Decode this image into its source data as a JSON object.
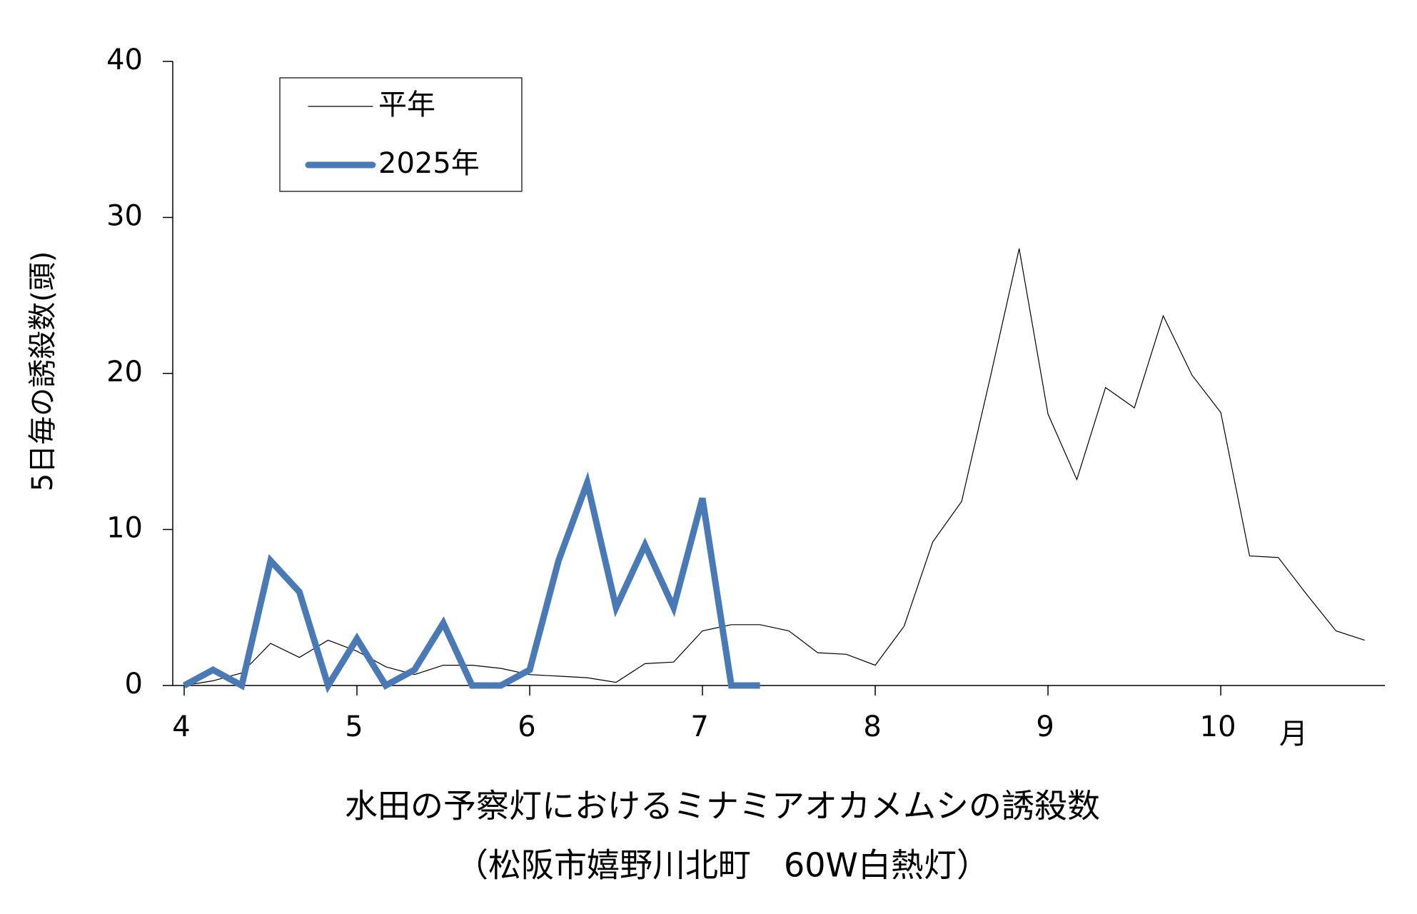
{
  "chart_data": {
    "type": "line",
    "title": "水田の予察灯におけるミナミアオカメムシの誘殺数",
    "subtitle": "（松阪市嬉野川北町　60W白熱灯）",
    "y_label": "5日毎の誘殺数(頭)",
    "x_label": "月",
    "x": [
      4,
      4.167,
      4.333,
      4.5,
      4.667,
      4.833,
      5,
      5.167,
      5.333,
      5.5,
      5.667,
      5.833,
      6,
      6.167,
      6.333,
      6.5,
      6.667,
      6.833,
      7,
      7.167,
      7.333,
      7.5,
      7.667,
      7.833,
      8,
      8.167,
      8.333,
      8.5,
      8.667,
      8.833,
      9,
      9.167,
      9.333,
      9.5,
      9.667,
      9.833,
      10,
      10.167,
      10.333,
      10.5,
      10.667,
      10.833
    ],
    "series": [
      {
        "name": "平年",
        "color": "#000000",
        "width": 1.2,
        "values": [
          0,
          0.3,
          0.8,
          2.7,
          1.8,
          2.9,
          2.2,
          1.2,
          0.7,
          1.3,
          1.3,
          1.1,
          0.7,
          0.6,
          0.5,
          0.2,
          1.4,
          1.5,
          3.5,
          3.9,
          3.9,
          3.5,
          2.1,
          2.0,
          1.3,
          3.8,
          9.2,
          11.8,
          19.8,
          28,
          17.4,
          13.2,
          19.1,
          17.8,
          23.7,
          19.9,
          17.5,
          8.3,
          8.2,
          5.8,
          3.5,
          2.9
        ]
      },
      {
        "name": "2025年",
        "color": "#4a7ab5",
        "width": 9,
        "values": [
          0,
          1,
          0,
          8,
          6,
          0,
          3,
          0,
          1,
          4,
          0,
          0,
          1,
          8,
          13,
          5,
          9,
          5,
          12,
          0,
          0,
          null,
          null,
          null,
          null,
          null,
          null,
          null,
          null,
          null,
          null,
          null,
          null,
          null,
          null,
          null,
          null,
          null,
          null,
          null,
          null,
          null
        ]
      }
    ],
    "xlim": [
      4,
      10.95
    ],
    "xticks": [
      4,
      5,
      6,
      7,
      8,
      9,
      10
    ],
    "ylim": [
      0,
      40
    ],
    "yticks": [
      0,
      10,
      20,
      30,
      40
    ],
    "legend": "upper-left"
  }
}
